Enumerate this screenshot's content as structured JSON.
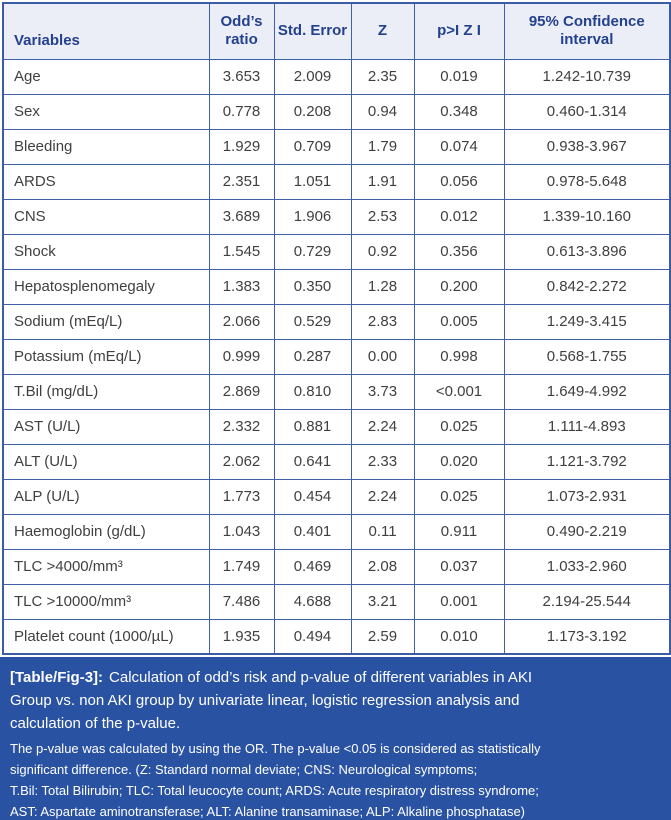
{
  "table": {
    "columns": [
      "Variables",
      "Odd’s ratio",
      "Std. Error",
      "Z",
      "p>I Z I",
      "95% Confidence interval"
    ],
    "rows": [
      {
        "variable": "Age",
        "odds_ratio": "3.653",
        "std_error": "2.009",
        "z": "2.35",
        "p": "0.019",
        "ci": "1.242-10.739"
      },
      {
        "variable": "Sex",
        "odds_ratio": "0.778",
        "std_error": "0.208",
        "z": "0.94",
        "p": "0.348",
        "ci": "0.460-1.314"
      },
      {
        "variable": "Bleeding",
        "odds_ratio": "1.929",
        "std_error": "0.709",
        "z": "1.79",
        "p": "0.074",
        "ci": "0.938-3.967"
      },
      {
        "variable": "ARDS",
        "odds_ratio": "2.351",
        "std_error": "1.051",
        "z": "1.91",
        "p": "0.056",
        "ci": "0.978-5.648"
      },
      {
        "variable": "CNS",
        "odds_ratio": "3.689",
        "std_error": "1.906",
        "z": "2.53",
        "p": "0.012",
        "ci": "1.339-10.160"
      },
      {
        "variable": "Shock",
        "odds_ratio": "1.545",
        "std_error": "0.729",
        "z": "0.92",
        "p": "0.356",
        "ci": "0.613-3.896"
      },
      {
        "variable": "Hepatosplenomegaly",
        "odds_ratio": "1.383",
        "std_error": "0.350",
        "z": "1.28",
        "p": "0.200",
        "ci": "0.842-2.272"
      },
      {
        "variable": "Sodium (mEq/L)",
        "odds_ratio": "2.066",
        "std_error": "0.529",
        "z": "2.83",
        "p": "0.005",
        "ci": "1.249-3.415"
      },
      {
        "variable": "Potassium (mEq/L)",
        "odds_ratio": "0.999",
        "std_error": "0.287",
        "z": "0.00",
        "p": "0.998",
        "ci": "0.568-1.755"
      },
      {
        "variable": "T.Bil (mg/dL)",
        "odds_ratio": "2.869",
        "std_error": "0.810",
        "z": "3.73",
        "p": "<0.001",
        "ci": "1.649-4.992"
      },
      {
        "variable": "AST (U/L)",
        "odds_ratio": "2.332",
        "std_error": "0.881",
        "z": "2.24",
        "p": "0.025",
        "ci": "1.111-4.893"
      },
      {
        "variable": "ALT (U/L)",
        "odds_ratio": "2.062",
        "std_error": "0.641",
        "z": "2.33",
        "p": "0.020",
        "ci": "1.121-3.792"
      },
      {
        "variable": "ALP (U/L)",
        "odds_ratio": "1.773",
        "std_error": "0.454",
        "z": "2.24",
        "p": "0.025",
        "ci": "1.073-2.931"
      },
      {
        "variable": "Haemoglobin (g/dL)",
        "odds_ratio": "1.043",
        "std_error": "0.401",
        "z": "0.11",
        "p": "0.911",
        "ci": "0.490-2.219"
      },
      {
        "variable": "TLC >4000/mm³",
        "odds_ratio": "1.749",
        "std_error": "0.469",
        "z": "2.08",
        "p": "0.037",
        "ci": "1.033-2.960"
      },
      {
        "variable": "TLC >10000/mm³",
        "odds_ratio": "7.486",
        "std_error": "4.688",
        "z": "3.21",
        "p": "0.001",
        "ci": "2.194-25.544"
      },
      {
        "variable": "Platelet count (1000/µL)",
        "odds_ratio": "1.935",
        "std_error": "0.494",
        "z": "2.59",
        "p": "0.010",
        "ci": "1.173-3.192"
      }
    ]
  },
  "caption": {
    "label": "[Table/Fig-3]:",
    "title_lines": [
      "Calculation of odd’s risk and p-value of different variables in AKI",
      "Group vs. non AKI group by univariate linear, logistic regression analysis and",
      "calculation of the p-value."
    ],
    "note_lines": [
      "The p-value was calculated by using the OR. The p-value <0.05 is considered as statistically",
      "significant difference. (Z: Standard normal deviate; CNS: Neurological symptoms;",
      "T.Bil: Total Bilirubin;  TLC: Total leucocyte count; ARDS: Acute respiratory distress syndrome;",
      "AST: Aspartate aminotransferase; ALT: Alanine transaminase; ALP: Alkaline phosphatase)"
    ]
  },
  "colors": {
    "header_background": "#ebeef7",
    "header_text": "#24418e",
    "grid_line": "#4060a8",
    "body_text": "#404042",
    "caption_background": "#2a52a3",
    "caption_text": "#ffffff"
  }
}
